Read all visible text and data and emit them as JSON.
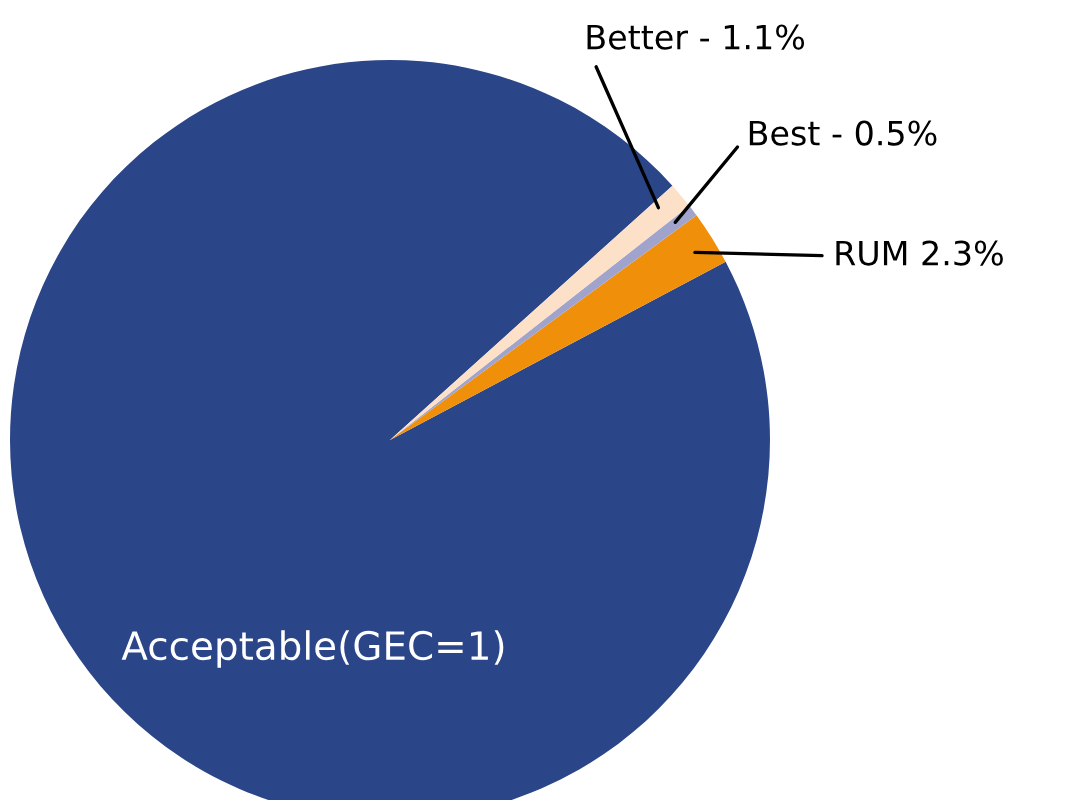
{
  "chart_data": {
    "type": "pie",
    "categories": [
      "Acceptable(GEC=1)",
      "RUM 2.3%",
      "Best - 0.5%",
      "Better - 1.1%"
    ],
    "values": [
      96.1,
      2.3,
      0.5,
      1.1
    ],
    "colors": [
      "#2b4589",
      "#f0900a",
      "#a0a4cc",
      "#fce0c8"
    ],
    "legend": false
  }
}
